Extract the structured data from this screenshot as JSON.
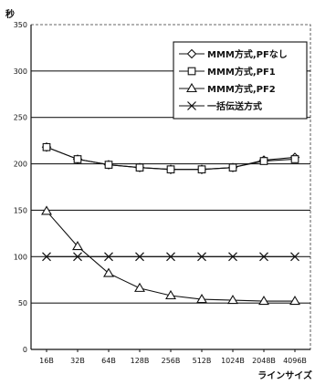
{
  "chart_data": {
    "type": "line",
    "ylabel": "秒",
    "xlabel": "ラインサイズ",
    "categories": [
      "16B",
      "32B",
      "64B",
      "128B",
      "256B",
      "512B",
      "1024B",
      "2048B",
      "4096B"
    ],
    "ylim": [
      0,
      350
    ],
    "yticks": [
      0,
      50,
      100,
      150,
      200,
      250,
      300,
      350
    ],
    "grid": true,
    "legend_position": "top-right",
    "series": [
      {
        "name": "MMM方式,PFなし",
        "marker": "diamond",
        "values": [
          218,
          205,
          199,
          196,
          194,
          194,
          196,
          204,
          207
        ]
      },
      {
        "name": "MMM方式,PF1",
        "marker": "square",
        "values": [
          218,
          205,
          199,
          196,
          194,
          194,
          196,
          203,
          205
        ]
      },
      {
        "name": "MMM方式,PF2",
        "marker": "triangle",
        "values": [
          149,
          111,
          82,
          66,
          58,
          54,
          53,
          52,
          52
        ]
      },
      {
        "name": "一括伝送方式",
        "marker": "x",
        "values": [
          100,
          100,
          100,
          100,
          100,
          100,
          100,
          100,
          100
        ]
      }
    ]
  }
}
